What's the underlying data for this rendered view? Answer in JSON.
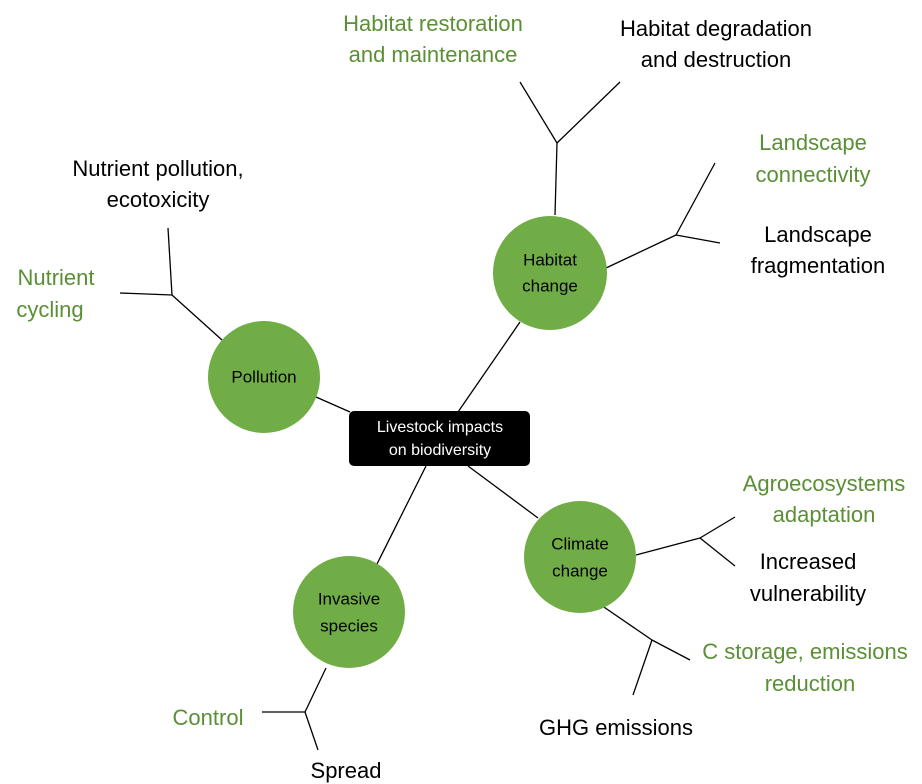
{
  "center": {
    "label": [
      "Livestock impacts",
      "on biodiversity"
    ]
  },
  "node_color": "#70ad47",
  "nodes": [
    {
      "label": [
        "Habitat",
        "change"
      ],
      "branches": [
        {
          "label": [
            "Habitat restoration",
            "and maintenance"
          ],
          "color": "#5b8f35"
        },
        {
          "label": [
            "Habitat degradation",
            "and destruction"
          ],
          "color": "#000000"
        },
        {
          "label": [
            "Landscape",
            "connectivity"
          ],
          "color": "#5b8f35"
        },
        {
          "label": [
            "Landscape",
            "fragmentation"
          ],
          "color": "#000000"
        }
      ]
    },
    {
      "label": [
        "Pollution"
      ],
      "branches": [
        {
          "label": [
            "Nutrient pollution,",
            "ecotoxicity"
          ],
          "color": "#000000"
        },
        {
          "label": [
            "Nutrient",
            "cycling"
          ],
          "color": "#5b8f35"
        }
      ]
    },
    {
      "label": [
        "Climate",
        "change"
      ],
      "branches": [
        {
          "label": [
            "Agroecosystems",
            "adaptation"
          ],
          "color": "#5b8f35"
        },
        {
          "label": [
            "Increased",
            "vulnerability"
          ],
          "color": "#000000"
        },
        {
          "label": [
            "C storage, emissions",
            "reduction"
          ],
          "color": "#5b8f35"
        },
        {
          "label": [
            "GHG emissions"
          ],
          "color": "#000000"
        }
      ]
    },
    {
      "label": [
        "Invasive",
        "species"
      ],
      "branches": [
        {
          "label": [
            "Control"
          ],
          "color": "#5b8f35"
        },
        {
          "label": [
            "Spread"
          ],
          "color": "#000000"
        }
      ]
    }
  ]
}
